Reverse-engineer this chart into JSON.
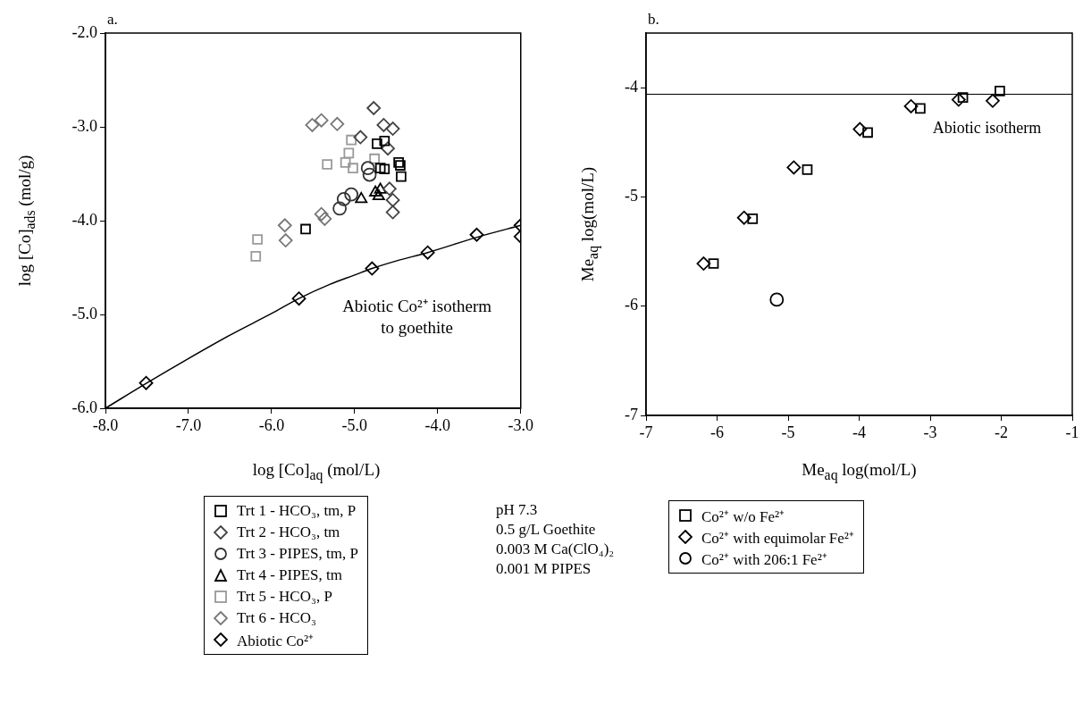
{
  "chart_data": [
    {
      "type": "scatter",
      "title": "a.",
      "xlabel": "log [Co]$_{aq}$ (mol/L)",
      "ylabel": "log [Co]$_{ads}$ (mol/g)",
      "xlim": [
        -8,
        -3
      ],
      "ylim": [
        -6,
        -2
      ],
      "xticks": [
        {
          "value": -8,
          "label": "-8.0"
        },
        {
          "value": -7,
          "label": "-7.0"
        },
        {
          "value": -6,
          "label": "-6.0"
        },
        {
          "value": -5,
          "label": "-5.0"
        },
        {
          "value": -4,
          "label": "-4.0"
        },
        {
          "value": -3,
          "label": "-3.0"
        }
      ],
      "yticks": [
        {
          "value": -6,
          "label": "-6.0"
        },
        {
          "value": -5,
          "label": "-5.0"
        },
        {
          "value": -4,
          "label": "-4.0"
        },
        {
          "value": -3,
          "label": "-3.0"
        },
        {
          "value": -2,
          "label": "-2.0"
        }
      ],
      "grid": false,
      "legend": "bottom",
      "series": [
        {
          "name": "Trt 1 - HCO₃, tm, P",
          "type": "scatter",
          "marker": "square",
          "color": "#000000",
          "x": [
            -5.59,
            -4.64,
            -4.73,
            -4.69,
            -4.64,
            -4.45,
            -4.44,
            -4.47
          ],
          "values": [
            -4.09,
            -3.15,
            -3.18,
            -3.44,
            -3.45,
            -3.41,
            -3.53,
            -3.38
          ]
        },
        {
          "name": "Trt 2 - HCO₃, tm",
          "type": "scatter",
          "marker": "diamond",
          "color": "#444444",
          "x": [
            -4.77,
            -4.65,
            -4.54,
            -4.54,
            -4.54,
            -4.58,
            -4.6,
            -4.93
          ],
          "values": [
            -2.8,
            -2.98,
            -3.02,
            -3.78,
            -3.91,
            -3.66,
            -3.23,
            -3.11
          ]
        },
        {
          "name": "Trt 3 - PIPES, tm, P",
          "type": "scatter",
          "marker": "circle",
          "color": "#333333",
          "x": [
            -5.18,
            -5.13,
            -5.04,
            -4.84,
            -4.82
          ],
          "values": [
            -3.87,
            -3.77,
            -3.72,
            -3.44,
            -3.51
          ]
        },
        {
          "name": "Trt 4 - PIPES, tm",
          "type": "scatter",
          "marker": "triangle",
          "color": "#000000",
          "x": [
            -4.92,
            -4.75,
            -4.69,
            -4.71
          ],
          "values": [
            -3.77,
            -3.7,
            -3.67,
            -3.74
          ]
        },
        {
          "name": "Trt 5 - HCO₃, P",
          "type": "scatter",
          "marker": "square",
          "color": "#999999",
          "x": [
            -6.17,
            -6.19,
            -5.33,
            -5.04,
            -5.07,
            -5.11,
            -5.02,
            -4.76
          ],
          "values": [
            -4.2,
            -4.38,
            -3.4,
            -3.14,
            -3.28,
            -3.38,
            -3.44,
            -3.34
          ]
        },
        {
          "name": "Trt 6 - HCO₃",
          "type": "scatter",
          "marker": "diamond",
          "color": "#777777",
          "x": [
            -5.51,
            -5.4,
            -5.21,
            -5.84,
            -5.83,
            -5.4,
            -5.36
          ],
          "values": [
            -2.98,
            -2.93,
            -2.97,
            -4.05,
            -4.21,
            -3.93,
            -3.98
          ]
        },
        {
          "name": "Abiotic Co²⁺",
          "type": "scatter",
          "marker": "diamond",
          "color": "#000000",
          "x": [
            -7.51,
            -5.67,
            -4.79,
            -4.12,
            -3.53,
            -3.0,
            -3.0
          ],
          "values": [
            -5.73,
            -4.83,
            -4.51,
            -4.34,
            -4.15,
            -4.05,
            -4.17
          ]
        },
        {
          "type": "line",
          "marker": "none",
          "line_style": "solid",
          "color": "#000000",
          "x": [
            -8,
            -7.5,
            -7,
            -6.5,
            -6,
            -5.67,
            -5.3,
            -5,
            -4.79,
            -4.5,
            -4.12,
            -3.5,
            -3
          ],
          "values": [
            -6.0,
            -5.73,
            -5.47,
            -5.22,
            -4.99,
            -4.83,
            -4.68,
            -4.58,
            -4.51,
            -4.43,
            -4.34,
            -4.17,
            -4.05
          ]
        }
      ],
      "annotations": [
        "Abiotic Co²⁺ isotherm to goethite",
        "pH 7.3",
        "0.5 g/L Goethite",
        "0.003 M Ca(ClO₄)₂",
        "0.001 M PIPES"
      ]
    },
    {
      "type": "scatter",
      "title": "b.",
      "xlabel": "Me$_{aq}$ log(mol/L)",
      "ylabel": "Me$_{aq}$ log(mol/L)",
      "xlim": [
        -7,
        -1
      ],
      "ylim": [
        -7,
        -3.5
      ],
      "xticks": [
        -7,
        -6,
        -5,
        -4,
        -3,
        -2,
        -1
      ],
      "yticks": [
        -7,
        -6,
        -5,
        -4
      ],
      "grid": false,
      "legend": "bottom",
      "series": [
        {
          "name": "Co²⁺ w/o Fe²⁺",
          "type": "scatter",
          "marker": "square",
          "color": "#000000",
          "x": [
            -6.05,
            -5.5,
            -4.73,
            -3.88,
            -3.14,
            -2.54,
            -2.02
          ],
          "values": [
            -5.61,
            -5.2,
            -4.75,
            -4.41,
            -4.19,
            -4.09,
            -4.03
          ]
        },
        {
          "name": "Co²⁺ with equimolar Fe²⁺",
          "type": "scatter",
          "marker": "diamond",
          "color": "#000000",
          "x": [
            -6.19,
            -5.62,
            -4.92,
            -3.99,
            -3.27,
            -2.6,
            -2.12
          ],
          "values": [
            -5.61,
            -5.19,
            -4.73,
            -4.38,
            -4.17,
            -4.11,
            -4.12
          ]
        },
        {
          "name": "Co²⁺ with 206:1 Fe²⁺",
          "type": "scatter",
          "marker": "circle",
          "color": "#000000",
          "x": [
            -5.16
          ],
          "values": [
            -5.94
          ]
        }
      ],
      "ref_lines": [
        {
          "axis": "y",
          "value": -4.06,
          "label": "Abiotic isotherm",
          "color": "#000000",
          "line_style": "solid"
        }
      ]
    }
  ]
}
